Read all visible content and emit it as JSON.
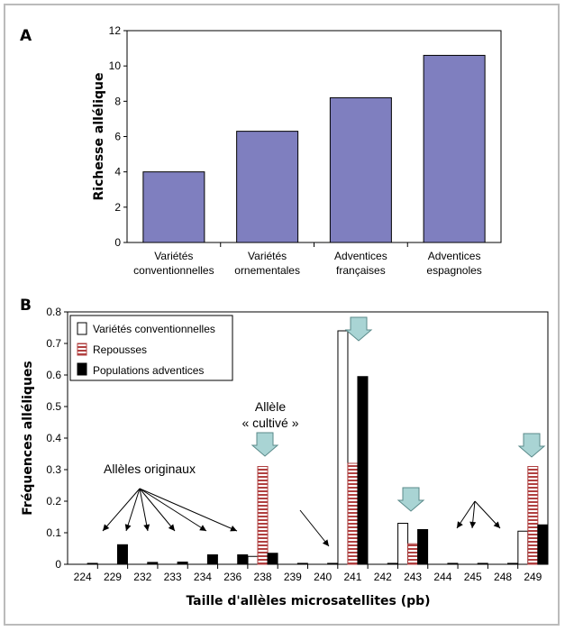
{
  "panels": {
    "a": "A",
    "b": "B"
  },
  "chart_data": [
    {
      "type": "bar",
      "categories": [
        [
          "Variétés",
          "conventionnelles"
        ],
        [
          "Variétés",
          "ornementales"
        ],
        [
          "Adventices",
          "françaises"
        ],
        [
          "Adventices",
          "espagnoles"
        ]
      ],
      "values": [
        4.0,
        6.3,
        8.2,
        10.6
      ],
      "ylabel": "Richesse allélique",
      "ylim": [
        0,
        12
      ],
      "yticks": [
        0,
        2,
        4,
        6,
        8,
        10,
        12
      ],
      "bar_color": "#7f7fbf"
    },
    {
      "type": "bar",
      "categories": [
        "224",
        "229",
        "232",
        "233",
        "234",
        "236",
        "238",
        "239",
        "240",
        "241",
        "242",
        "243",
        "244",
        "245",
        "248",
        "249"
      ],
      "series": [
        {
          "name": "Variétés conventionnelles",
          "values": [
            0,
            0,
            0,
            0,
            0,
            0,
            0.025,
            0,
            0,
            0.74,
            0,
            0.13,
            0,
            0,
            0,
            0.105
          ]
        },
        {
          "name": "Repousses",
          "values": [
            0,
            0,
            0,
            0,
            0,
            0,
            0.31,
            0,
            0,
            0.32,
            0,
            0.065,
            0,
            0,
            0,
            0.31
          ]
        },
        {
          "name": "Populations adventices",
          "values": [
            0.003,
            0.062,
            0.006,
            0.007,
            0.03,
            0.03,
            0.035,
            0.003,
            0.003,
            0.595,
            0.003,
            0.11,
            0.003,
            0.003,
            0.003,
            0.125
          ]
        }
      ],
      "xlabel": "Taille d'allèles microsatellites (pb)",
      "ylabel": "Fréquences alléliques",
      "ylim": [
        0,
        0.8
      ],
      "yticks": [
        "0",
        "0.1",
        "0.2",
        "0.3",
        "0.4",
        "0.5",
        "0.6",
        "0.7",
        "0.8"
      ],
      "legend": {
        "position": "top-left"
      },
      "annotations": {
        "original": "Allèles originaux",
        "cultivated_line1": "Allèle",
        "cultivated_line2": "« cultivé »"
      },
      "arrow_color": "#a9d4d4"
    }
  ]
}
